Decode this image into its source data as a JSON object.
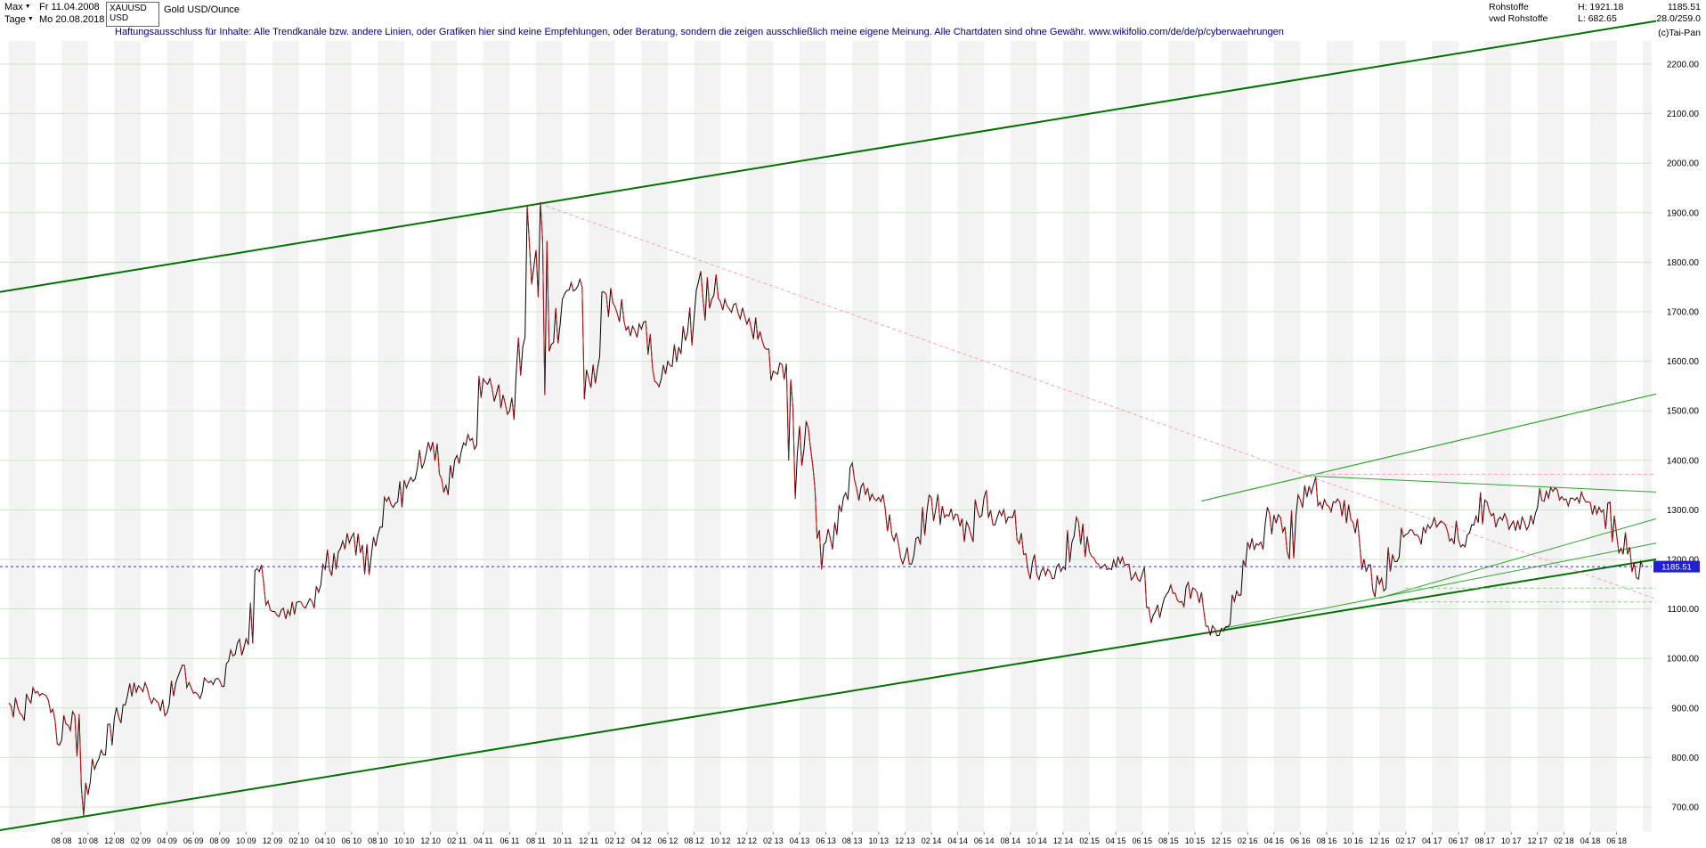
{
  "header": {
    "range_selector_label": "Max",
    "range_start_date": "Fr 11.04.2008",
    "period_selector_label": "Tage",
    "period_end_date": "Mo 20.08.2018",
    "symbol": "XAUUSD",
    "currency": "USD",
    "instrument_name": "Gold USD/Ounce",
    "disclaimer": "Haftungsausschluss für Inhalte: Alle Trendkanäle bzw. andere Linien, oder Grafiken hier sind keine Empfehlungen, oder Beratung, sondern die zeigen ausschließlich meine eigene Meinung. Alle Chartdaten sind ohne Gewähr.  www.wikifolio.com/de/de/p/cyberwaehrungen",
    "feed_line1": "Rohstoffe",
    "feed_line2": "vwd Rohstoffe",
    "high_label": "H: 1921.18",
    "low_label": "L: 682.65",
    "last_price_label": "1185.51",
    "range_info": "28.0/259.0",
    "copyright": "(c)Tai-Pan"
  },
  "icons": {
    "dropdown_arrow": "▼"
  },
  "colors": {
    "channel": "#007000",
    "minor_trend": "#2fa52f",
    "pink_trend": "#ffa0b4",
    "support_dashed": "#7fd67f",
    "last_price_line": "#3333cc",
    "price_tag_bg": "#2222cc",
    "price_tag_text": "#ffffff",
    "up_tick": "#000000",
    "down_tick": "#cc1111",
    "grid": "#c9e7c9",
    "stripe": "#f3f3f3",
    "axis_text": "#000000"
  },
  "chart_data": {
    "type": "line",
    "title": "Gold USD/Ounce (XAUUSD), daily, Apr 2008 - Aug 2018",
    "instrument": "XAUUSD",
    "x_unit": "month",
    "x_months_start": "2008-04",
    "x_months_end": "2018-08",
    "ylim": [
      650,
      2300
    ],
    "grid": true,
    "last_price": 1185.51,
    "last_price_label": "1185.51",
    "high_of_range": 1921.18,
    "low_of_range": 682.65,
    "y_axis_labels": [
      "2200.00",
      "2100.00",
      "2000.00",
      "1900.00",
      "1800.00",
      "1700.00",
      "1600.00",
      "1500.00",
      "1400.00",
      "1300.00",
      "1200.00",
      "1100.00",
      "1000.00",
      "900.00",
      "800.00",
      "700.00"
    ],
    "x_tick_labels": [
      "08 08",
      "10 08",
      "12 08",
      "02 09",
      "04 09",
      "06 09",
      "08 09",
      "10 09",
      "12 09",
      "02 10",
      "04 10",
      "06 10",
      "08 10",
      "10 10",
      "12 10",
      "02 11",
      "04 11",
      "06 11",
      "08 11",
      "10 11",
      "12 11",
      "02 12",
      "04 12",
      "06 12",
      "08 12",
      "10 12",
      "12 12",
      "02 13",
      "04 13",
      "06 13",
      "08 13",
      "10 13",
      "12 13",
      "02 14",
      "04 14",
      "06 14",
      "08 14",
      "10 14",
      "12 14",
      "02 15",
      "04 15",
      "06 15",
      "08 15",
      "10 15",
      "12 15",
      "02 16",
      "04 16",
      "06 16",
      "08 16",
      "10 16",
      "12 16",
      "02 17",
      "04 17",
      "06 17",
      "08 17",
      "10 17",
      "12 17",
      "02 18",
      "04 18",
      "06 18"
    ],
    "monthly_close": [
      910,
      885,
      930,
      915,
      835,
      885,
      725,
      815,
      880,
      925,
      940,
      920,
      890,
      975,
      930,
      955,
      955,
      1005,
      1040,
      1175,
      1095,
      1080,
      1115,
      1115,
      1180,
      1215,
      1245,
      1170,
      1250,
      1310,
      1360,
      1385,
      1420,
      1335,
      1410,
      1440,
      1565,
      1535,
      1500,
      1630,
      1825,
      1620,
      1725,
      1745,
      1565,
      1740,
      1710,
      1670,
      1665,
      1560,
      1600,
      1615,
      1690,
      1770,
      1720,
      1715,
      1675,
      1660,
      1580,
      1595,
      1470,
      1390,
      1235,
      1310,
      1395,
      1330,
      1325,
      1250,
      1205,
      1245,
      1325,
      1285,
      1290,
      1250,
      1325,
      1285,
      1285,
      1210,
      1170,
      1175,
      1185,
      1285,
      1215,
      1185,
      1185,
      1190,
      1170,
      1095,
      1135,
      1115,
      1140,
      1065,
      1060,
      1115,
      1235,
      1235,
      1290,
      1215,
      1320,
      1350,
      1310,
      1315,
      1275,
      1175,
      1150,
      1210,
      1250,
      1245,
      1270,
      1270,
      1240,
      1270,
      1320,
      1280,
      1270,
      1275,
      1305,
      1345,
      1320,
      1325,
      1315,
      1300,
      1250,
      1225,
      1185.51
    ],
    "extremes": {
      "6": {
        "low": 682.65
      },
      "40": {
        "high": 1913
      },
      "41": {
        "high": 1921.18,
        "low": 1532
      },
      "44": {
        "low": 1523
      },
      "60": {
        "low": 1322
      },
      "62": {
        "low": 1180
      },
      "87": {
        "low": 1072
      },
      "92": {
        "low": 1046
      },
      "104": {
        "low": 1124
      },
      "124": {
        "low": 1160
      }
    },
    "trendlines": [
      {
        "name": "upper-channel-line",
        "m0": -0.7,
        "p0": 1740,
        "m1": 125,
        "p1": 2287,
        "color": "#007000",
        "width": 2,
        "dash": ""
      },
      {
        "name": "lower-channel-line",
        "m0": -0.7,
        "p0": 653,
        "m1": 125,
        "p1": 1200,
        "color": "#007000",
        "width": 2,
        "dash": ""
      },
      {
        "name": "steep-support-line",
        "m0": 90.5,
        "p0": 1318,
        "m1": 125,
        "p1": 1534,
        "color": "#2fa52f",
        "width": 1.2,
        "dash": ""
      },
      {
        "name": "wedge-support-line",
        "m0": 104,
        "p0": 1122,
        "m1": 125,
        "p1": 1282,
        "color": "#2fa52f",
        "width": 1,
        "dash": ""
      },
      {
        "name": "parallel-support-line",
        "m0": 92,
        "p0": 1060,
        "m1": 125,
        "p1": 1233,
        "color": "#2fa52f",
        "width": 1,
        "dash": ""
      },
      {
        "name": "flat-resistance-line",
        "m0": 99,
        "p0": 1368,
        "m1": 125,
        "p1": 1336,
        "color": "#2fa52f",
        "width": 1,
        "dash": ""
      },
      {
        "name": "pink-downtrend-line",
        "m0": 40.3,
        "p0": 1918,
        "m1": 125,
        "p1": 1120,
        "color": "#ffa0b4",
        "width": 1,
        "dash": "4,3"
      },
      {
        "name": "pink-horizontal-line",
        "m0": 99,
        "p0": 1372,
        "m1": 125,
        "p1": 1372,
        "color": "#ffa0b4",
        "width": 1,
        "dash": "4,3"
      },
      {
        "name": "support-dashed-upper",
        "m0": 106,
        "p0": 1142,
        "m1": 125,
        "p1": 1142,
        "color": "#7fd67f",
        "width": 1,
        "dash": "4,3"
      },
      {
        "name": "support-dashed-lower",
        "m0": 106,
        "p0": 1114,
        "m1": 125,
        "p1": 1114,
        "color": "#7fd67f",
        "width": 1,
        "dash": "4,3"
      }
    ]
  }
}
